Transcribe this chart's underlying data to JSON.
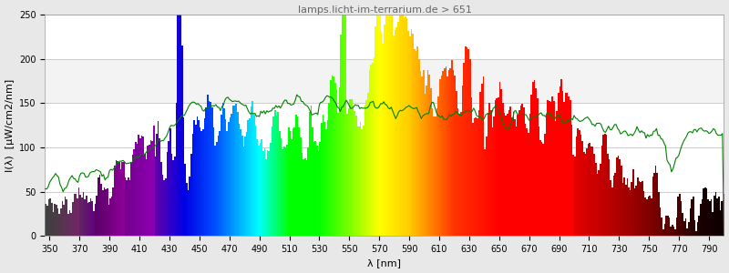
{
  "title": "lamps.licht-im-terrarium.de > 651",
  "xlabel": "λ [nm]",
  "ylabel": "I(λ)  [μW/cm2/nm]",
  "xlim": [
    347,
    800
  ],
  "ylim": [
    0,
    250
  ],
  "xticks": [
    350,
    370,
    390,
    410,
    430,
    450,
    470,
    490,
    510,
    530,
    550,
    570,
    590,
    610,
    630,
    650,
    670,
    690,
    710,
    730,
    750,
    770,
    790
  ],
  "yticks": [
    0,
    50,
    100,
    150,
    200,
    250
  ],
  "bg_color": "#e8e8e8",
  "plot_bg_color": "#ffffff",
  "grid_color": "#cccccc",
  "title_color": "#666666",
  "title_fontsize": 8,
  "axis_label_fontsize": 8,
  "tick_fontsize": 7
}
